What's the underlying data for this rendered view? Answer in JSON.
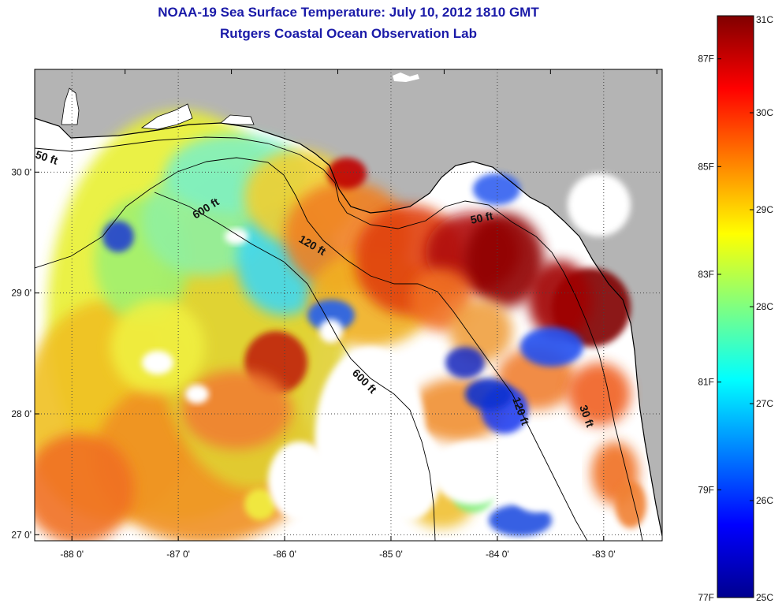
{
  "title": {
    "line1": "NOAA-19 Sea Surface Temperature:  July 10, 2012 1810 GMT",
    "line2": "Rutgers Coastal Ocean Observation Lab"
  },
  "map": {
    "lon_range": [
      -88.35,
      -82.45
    ],
    "lat_range": [
      26.95,
      30.85
    ],
    "lon_ticks": [
      {
        "value": -88,
        "label": "-88 0'"
      },
      {
        "value": -87,
        "label": "-87 0'"
      },
      {
        "value": -86,
        "label": "-86 0'"
      },
      {
        "value": -85,
        "label": "-85 0'"
      },
      {
        "value": -84,
        "label": "-84 0'"
      },
      {
        "value": -83,
        "label": "-83 0'"
      }
    ],
    "lat_ticks": [
      {
        "value": 30,
        "label": "30 0'"
      },
      {
        "value": 29,
        "label": "29 0'"
      },
      {
        "value": 28,
        "label": "28 0'"
      },
      {
        "value": 27,
        "label": "27 0'"
      }
    ],
    "depth_labels": [
      {
        "text": "50 ft",
        "id": "depth-50ft-west"
      },
      {
        "text": "600 ft",
        "id": "depth-600ft-north"
      },
      {
        "text": "120 ft",
        "id": "depth-120ft-north"
      },
      {
        "text": "50 ft",
        "id": "depth-50ft-bigbend"
      },
      {
        "text": "600 ft",
        "id": "depth-600ft-south"
      },
      {
        "text": "120 ft",
        "id": "depth-120ft-south"
      },
      {
        "text": "30 ft",
        "id": "depth-30ft-south"
      }
    ],
    "colors": {
      "land": "#b4b4b4",
      "no_data": "#ffffff",
      "grid": "#444444"
    }
  },
  "colorbar": {
    "min_c": 25,
    "max_c": 31,
    "celsius_ticks": [
      {
        "value": 31,
        "label": "31C"
      },
      {
        "value": 30,
        "label": "30C"
      },
      {
        "value": 29,
        "label": "29C"
      },
      {
        "value": 28,
        "label": "28C"
      },
      {
        "value": 27,
        "label": "27C"
      },
      {
        "value": 26,
        "label": "26C"
      },
      {
        "value": 25,
        "label": "25C"
      }
    ],
    "fahrenheit_ticks": [
      {
        "value": 87,
        "label": "87F"
      },
      {
        "value": 85,
        "label": "85F"
      },
      {
        "value": 83,
        "label": "83F"
      },
      {
        "value": 81,
        "label": "81F"
      },
      {
        "value": 79,
        "label": "79F"
      },
      {
        "value": 77,
        "label": "77F"
      }
    ],
    "stops": [
      "#00008f",
      "#0000ff",
      "#0080ff",
      "#00ffff",
      "#80ff80",
      "#ffff00",
      "#ff8000",
      "#ff0000",
      "#800000"
    ]
  }
}
